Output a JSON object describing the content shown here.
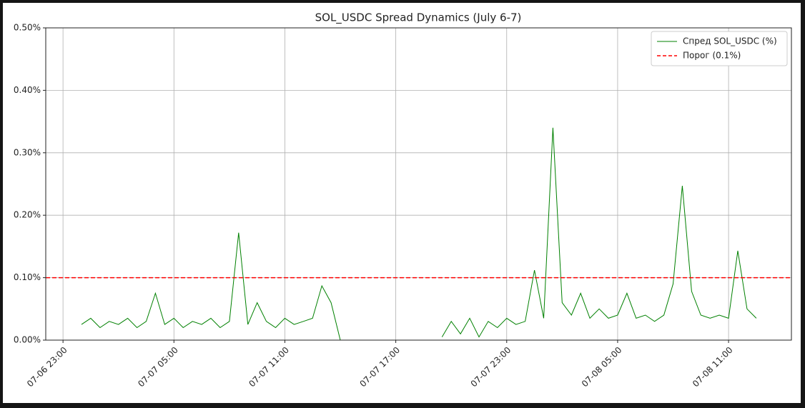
{
  "chart_data": {
    "type": "line",
    "title": "SOL_USDC Spread Dynamics (July 6-7)",
    "x": [
      "07-07 00:00",
      "07-07 00:30",
      "07-07 01:00",
      "07-07 01:30",
      "07-07 02:00",
      "07-07 02:30",
      "07-07 03:00",
      "07-07 03:30",
      "07-07 04:00",
      "07-07 04:30",
      "07-07 05:00",
      "07-07 05:30",
      "07-07 06:00",
      "07-07 06:30",
      "07-07 07:00",
      "07-07 07:30",
      "07-07 08:00",
      "07-07 08:30",
      "07-07 09:00",
      "07-07 09:30",
      "07-07 10:00",
      "07-07 10:30",
      "07-07 11:00",
      "07-07 11:30",
      "07-07 12:00",
      "07-07 12:30",
      "07-07 13:00",
      "07-07 13:30",
      "07-07 14:00",
      "07-07 16:00",
      "07-07 19:30",
      "07-07 20:00",
      "07-07 20:30",
      "07-07 21:00",
      "07-07 21:30",
      "07-07 22:00",
      "07-07 22:30",
      "07-07 23:00",
      "07-07 23:30",
      "07-08 00:00",
      "07-08 00:30",
      "07-08 01:00",
      "07-08 01:30",
      "07-08 02:00",
      "07-08 02:30",
      "07-08 03:00",
      "07-08 03:30",
      "07-08 04:00",
      "07-08 04:30",
      "07-08 05:00",
      "07-08 05:30",
      "07-08 06:00",
      "07-08 06:30",
      "07-08 07:00",
      "07-08 07:30",
      "07-08 08:00",
      "07-08 08:30",
      "07-08 09:00",
      "07-08 09:30",
      "07-08 10:00",
      "07-08 10:30",
      "07-08 11:00",
      "07-08 11:30",
      "07-08 12:00",
      "07-08 12:30"
    ],
    "series": [
      {
        "name": "Спред SOL_USDC (%)",
        "color": "#008000",
        "values": [
          0.025,
          0.035,
          0.02,
          0.03,
          0.025,
          0.035,
          0.02,
          0.03,
          0.075,
          0.025,
          0.035,
          0.02,
          0.03,
          0.025,
          0.035,
          0.02,
          0.03,
          0.172,
          0.025,
          0.06,
          0.03,
          0.02,
          0.035,
          0.025,
          0.03,
          0.035,
          0.087,
          0.06,
          0.0,
          null,
          0.005,
          0.03,
          0.01,
          0.035,
          0.005,
          0.03,
          0.02,
          0.035,
          0.025,
          0.03,
          0.112,
          0.035,
          0.34,
          0.06,
          0.04,
          0.075,
          0.035,
          0.05,
          0.035,
          0.04,
          0.075,
          0.035,
          0.04,
          0.03,
          0.04,
          0.09,
          0.247,
          0.078,
          0.04,
          0.035,
          0.04,
          0.035,
          0.143,
          0.05,
          0.035
        ]
      }
    ],
    "threshold": {
      "name": "Порог (0.1%)",
      "value": 0.1,
      "color": "#ff0000"
    },
    "xlim": [
      "07-06 22:04",
      "07-08 14:24"
    ],
    "xticks": [
      "07-06 23:00",
      "07-07 05:00",
      "07-07 11:00",
      "07-07 17:00",
      "07-07 23:00",
      "07-08 05:00",
      "07-08 11:00"
    ],
    "ylim": [
      0,
      0.5
    ],
    "yticks": [
      {
        "value": 0,
        "label": "0.00%"
      },
      {
        "value": 0.1,
        "label": "0.10%"
      },
      {
        "value": 0.2,
        "label": "0.20%"
      },
      {
        "value": 0.3,
        "label": "0.30%"
      },
      {
        "value": 0.4,
        "label": "0.40%"
      },
      {
        "value": 0.5,
        "label": "0.50%"
      }
    ],
    "grid": true,
    "legend": "upper right"
  }
}
